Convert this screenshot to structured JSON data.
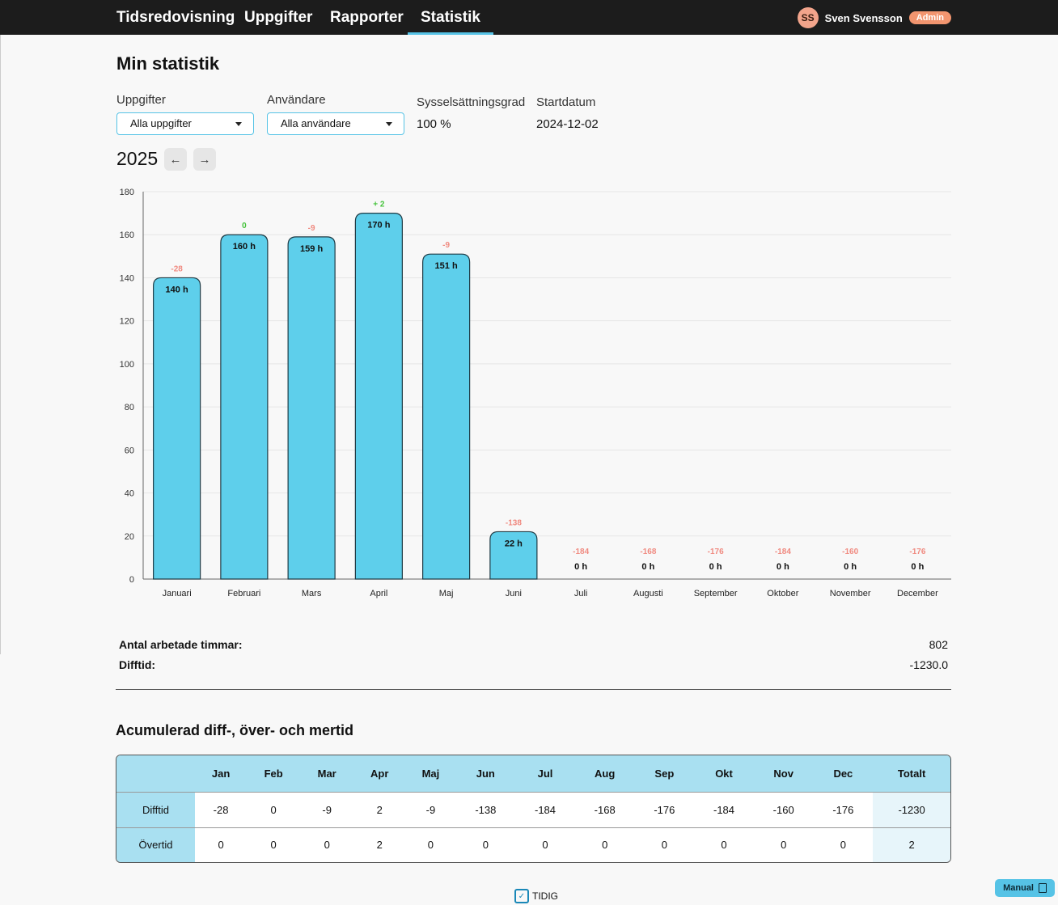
{
  "nav": {
    "tabs": [
      {
        "label": "Tidsredovisning"
      },
      {
        "label": "Uppgifter"
      },
      {
        "label": "Rapporter"
      },
      {
        "label": "Statistik"
      }
    ],
    "active": "Statistik"
  },
  "user": {
    "initials": "SS",
    "name": "Sven Svensson",
    "role": "Admin"
  },
  "page": {
    "title": "Min statistik"
  },
  "filters": {
    "tasks_label": "Uppgifter",
    "tasks_value": "Alla uppgifter",
    "users_label": "Användare",
    "users_value": "Alla användare",
    "employment_label": "Sysselsättningsgrad",
    "employment_value": "100 %",
    "start_label": "Startdatum",
    "start_value": "2024-12-02"
  },
  "year": "2025",
  "chart_data": {
    "type": "bar",
    "categories": [
      "Januari",
      "Februari",
      "Mars",
      "April",
      "Maj",
      "Juni",
      "Juli",
      "Augusti",
      "September",
      "Oktober",
      "November",
      "December"
    ],
    "values": [
      140,
      160,
      159,
      170,
      151,
      22,
      0,
      0,
      0,
      0,
      0,
      0
    ],
    "value_labels": [
      "140 h",
      "160 h",
      "159 h",
      "170 h",
      "151 h",
      "22 h",
      "0 h",
      "0 h",
      "0 h",
      "0 h",
      "0 h",
      "0 h"
    ],
    "diff_labels": [
      "-28",
      "0",
      "-9",
      "+ 2",
      "-9",
      "-138",
      "-184",
      "-168",
      "-176",
      "-184",
      "-160",
      "-176"
    ],
    "yticks": [
      "0",
      "20",
      "40",
      "60",
      "80",
      "100",
      "120",
      "140",
      "160",
      "180"
    ],
    "ylim": [
      0,
      180
    ],
    "grid": true,
    "bar_color": "#5ecfeb",
    "negative_color": "#f08a80",
    "positive_color": "#44c23a"
  },
  "summary": {
    "hours_label": "Antal arbetade timmar:",
    "hours_value": "802",
    "diff_label": "Difftid:",
    "diff_value": "-1230.0"
  },
  "acc": {
    "title": "Acumulerad diff-, över- och mertid",
    "headers": [
      "",
      "Jan",
      "Feb",
      "Mar",
      "Apr",
      "Maj",
      "Jun",
      "Jul",
      "Aug",
      "Sep",
      "Okt",
      "Nov",
      "Dec",
      "Totalt"
    ],
    "rows": [
      {
        "label": "Difftid",
        "values": [
          "-28",
          "0",
          "-9",
          "2",
          "-9",
          "-138",
          "-184",
          "-168",
          "-176",
          "-184",
          "-160",
          "-176"
        ],
        "total": "-1230"
      },
      {
        "label": "Övertid",
        "values": [
          "0",
          "0",
          "0",
          "2",
          "0",
          "0",
          "0",
          "0",
          "0",
          "0",
          "0",
          "0"
        ],
        "total": "2"
      }
    ]
  },
  "footer": {
    "brand": "TIDIG"
  },
  "manual": {
    "label": "Manual"
  }
}
